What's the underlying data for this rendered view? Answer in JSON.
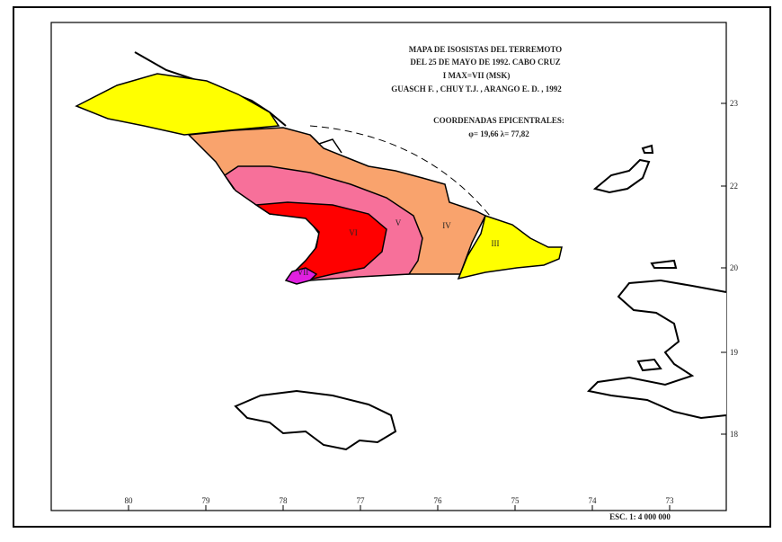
{
  "title_lines": [
    "MAPA DE ISOSISTAS DEL TERREMOTO",
    "DEL 25 DE MAYO DE 1992. CABO CRUZ",
    "I MAX=VII (MSK)",
    "GUASCH F. , CHUY T.J. , ARANGO E. D. , 1992"
  ],
  "epicenter": {
    "heading": "COORDENADAS EPICENTRALES:",
    "coordinates": "φ= 19,66    λ= 77,82"
  },
  "zones": [
    "VII",
    "VI",
    "V",
    "IV",
    "III"
  ],
  "lat_labels": [
    23,
    22,
    20,
    19,
    18
  ],
  "lon_labels": [
    80,
    79,
    78,
    77,
    76,
    75,
    74,
    73
  ],
  "scale": "ESC. 1: 4 000 000"
}
